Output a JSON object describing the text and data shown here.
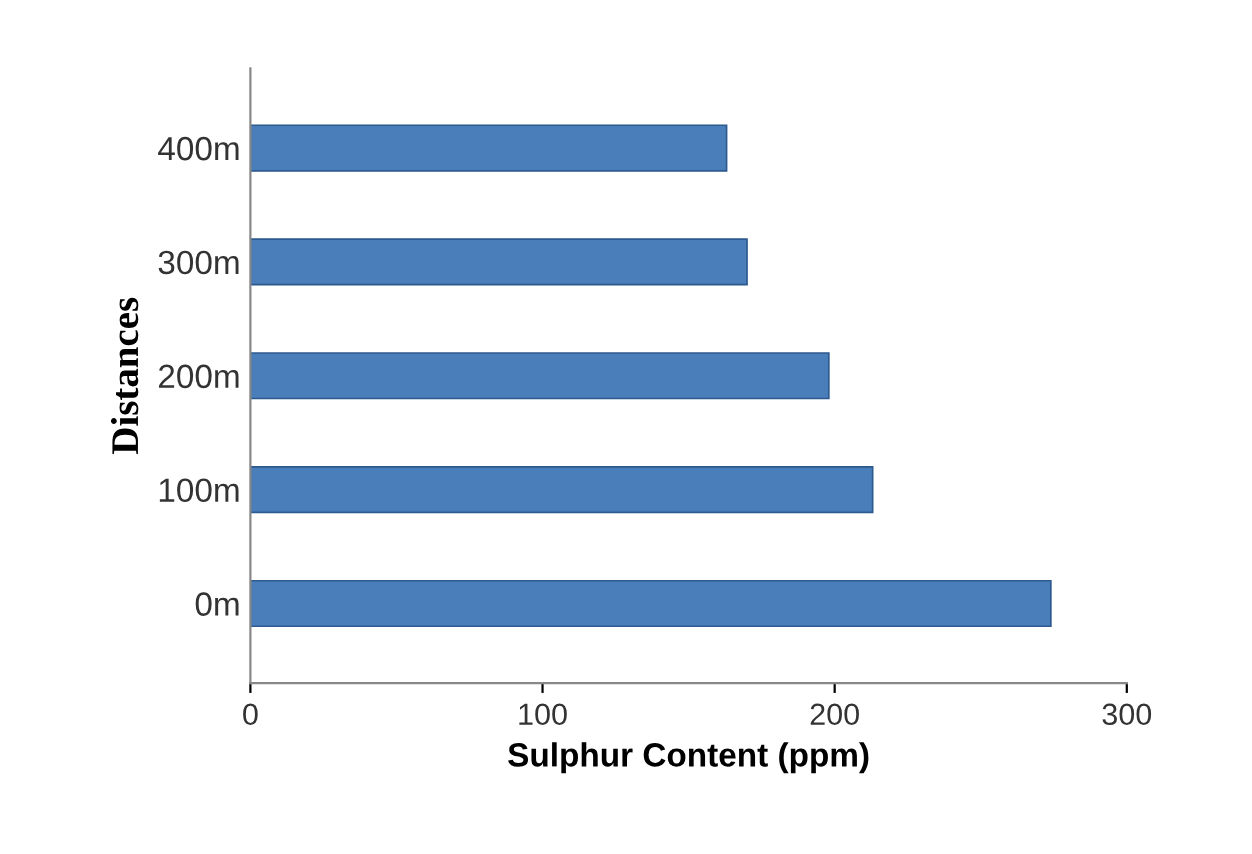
{
  "chart_data": {
    "type": "bar",
    "orientation": "horizontal",
    "xlabel": "Sulphur Content (ppm)",
    "ylabel": "Distances",
    "categories": [
      "400m",
      "300m",
      "200m",
      "100m",
      "0m"
    ],
    "values": [
      163,
      170,
      198,
      213,
      274
    ],
    "color": "#4a7ebb",
    "xlim": [
      0,
      300
    ],
    "xticks": [
      0,
      100,
      200,
      300
    ],
    "grid": false,
    "legend": false
  }
}
